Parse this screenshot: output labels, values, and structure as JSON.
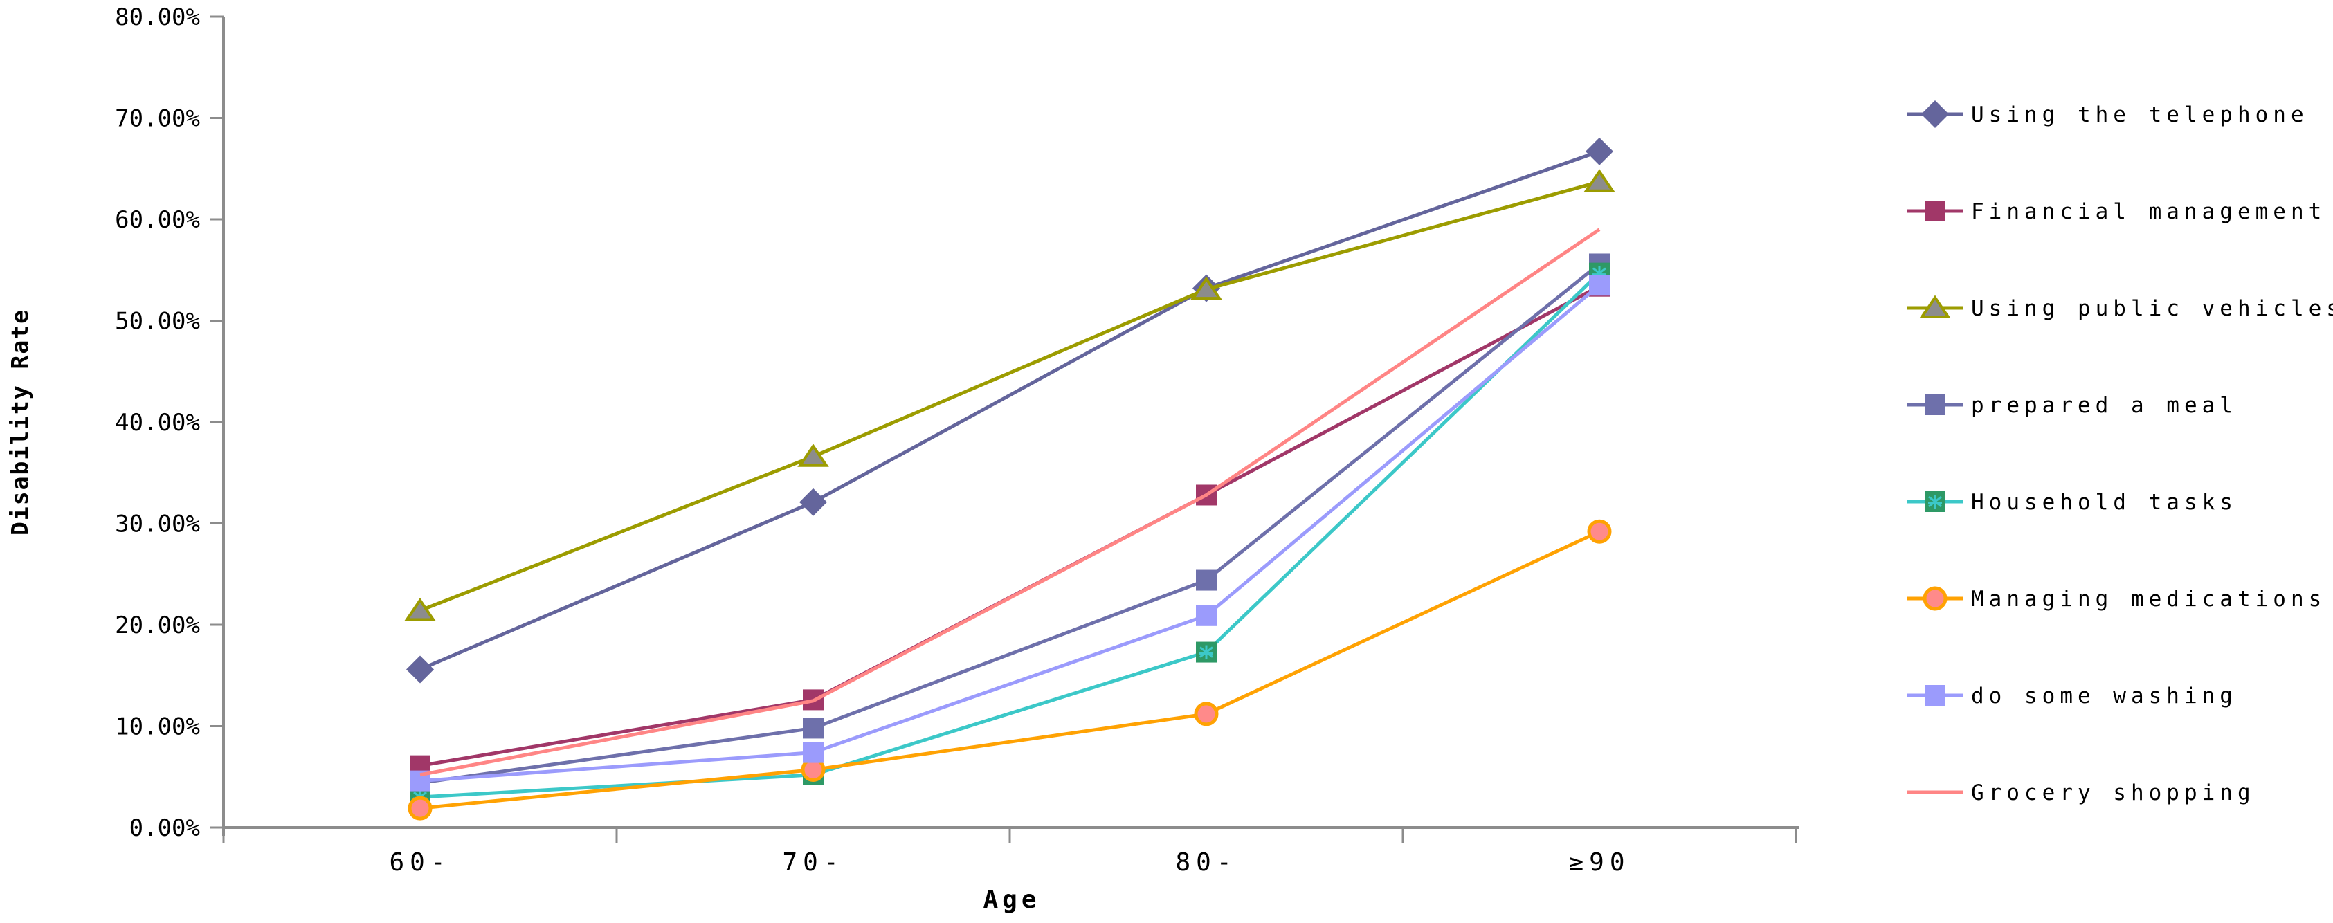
{
  "chart_data": {
    "type": "line",
    "categories": [
      "60-",
      "70-",
      "80-",
      "≥90"
    ],
    "series": [
      {
        "name": "Using the telephone",
        "marker": "diamond",
        "line_color": "#64659C",
        "marker_fill": "#64659C",
        "marker_edge": "#64659C",
        "values": [
          15.6,
          32.1,
          53.2,
          66.7
        ]
      },
      {
        "name": "Financial management",
        "marker": "square",
        "line_color": "#A13768",
        "marker_fill": "#A13768",
        "marker_edge": "#A13768",
        "values": [
          6.1,
          12.6,
          32.8,
          53.4
        ]
      },
      {
        "name": "Using public vehicles",
        "marker": "triangle",
        "line_color": "#9C9C00",
        "marker_fill": "#8C8C8C",
        "marker_edge": "#9C9C00",
        "values": [
          21.4,
          36.6,
          53.1,
          63.7
        ]
      },
      {
        "name": "prepared a meal",
        "marker": "square",
        "line_color": "#6E70AB",
        "marker_fill": "#6E70AB",
        "marker_edge": "#6E70AB",
        "values": [
          4.4,
          9.8,
          24.4,
          55.6
        ]
      },
      {
        "name": "Household tasks",
        "marker": "square-star",
        "line_color": "#3CC8C8",
        "marker_fill": "#2E9966",
        "marker_edge": "#3CC8C8",
        "values": [
          3.0,
          5.2,
          17.3,
          54.7
        ]
      },
      {
        "name": "Managing medications",
        "marker": "circle",
        "line_color": "#FFA203",
        "marker_fill": "#FF8A8A",
        "marker_edge": "#FFA203",
        "values": [
          1.9,
          5.7,
          11.2,
          29.2
        ]
      },
      {
        "name": "do some washing",
        "marker": "square",
        "line_color": "#9B9BFC",
        "marker_fill": "#9B9BFC",
        "marker_edge": "#9B9BFC",
        "values": [
          4.6,
          7.4,
          20.9,
          53.5
        ]
      },
      {
        "name": "Grocery shopping",
        "marker": "none",
        "line_color": "#FF8585",
        "marker_fill": "#FF8585",
        "marker_edge": "#FF8585",
        "values": [
          5.2,
          12.5,
          32.8,
          59.0
        ]
      }
    ],
    "title": "",
    "xlabel": "Age",
    "ylabel": "Disability Rate",
    "ylim": [
      0,
      80
    ],
    "ytick_step": 10,
    "ytick_labels": [
      "0.00%",
      "10.00%",
      "20.00%",
      "30.00%",
      "40.00%",
      "50.00%",
      "60.00%",
      "70.00%",
      "80.00%"
    ],
    "legend_position": "right",
    "grid": false,
    "axis_color": "#8C8C8C"
  }
}
